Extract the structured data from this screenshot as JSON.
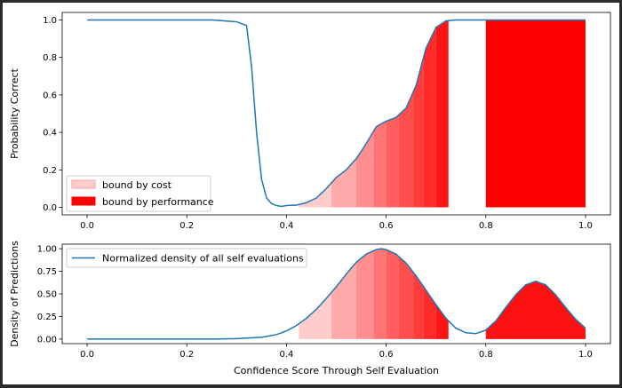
{
  "chart_data": [
    {
      "type": "line",
      "title": "",
      "xlabel": "",
      "ylabel": "Probability Correct",
      "xlim": [
        -0.05,
        1.05
      ],
      "ylim": [
        -0.04,
        1.04
      ],
      "xticks": [
        "0.0",
        "0.2",
        "0.4",
        "0.6",
        "0.8",
        "1.0"
      ],
      "yticks": [
        "0.0",
        "0.2",
        "0.4",
        "0.6",
        "0.8",
        "1.0"
      ],
      "series": [
        {
          "name": "probability correct",
          "color": "#1f77b4",
          "x": [
            0.0,
            0.05,
            0.1,
            0.15,
            0.2,
            0.25,
            0.3,
            0.32,
            0.33,
            0.34,
            0.35,
            0.36,
            0.37,
            0.38,
            0.39,
            0.4,
            0.42,
            0.44,
            0.46,
            0.48,
            0.5,
            0.52,
            0.54,
            0.56,
            0.58,
            0.6,
            0.62,
            0.64,
            0.66,
            0.68,
            0.7,
            0.72,
            0.74,
            0.76,
            0.8,
            0.85,
            0.9,
            0.95,
            1.0
          ],
          "y": [
            1.0,
            1.0,
            1.0,
            1.0,
            1.0,
            1.0,
            0.99,
            0.97,
            0.75,
            0.4,
            0.15,
            0.05,
            0.02,
            0.01,
            0.005,
            0.01,
            0.012,
            0.025,
            0.05,
            0.1,
            0.16,
            0.2,
            0.26,
            0.34,
            0.43,
            0.46,
            0.48,
            0.53,
            0.65,
            0.85,
            0.96,
            0.995,
            1.0,
            1.0,
            1.0,
            1.0,
            1.0,
            1.0,
            1.0
          ]
        }
      ],
      "fill_regions": [
        {
          "x_start": 0.425,
          "x_end": 0.49,
          "color": "#ffcccc"
        },
        {
          "x_start": 0.49,
          "x_end": 0.54,
          "color": "#ffaaaa"
        },
        {
          "x_start": 0.54,
          "x_end": 0.575,
          "color": "#ff8f8f"
        },
        {
          "x_start": 0.575,
          "x_end": 0.6,
          "color": "#ff7474"
        },
        {
          "x_start": 0.6,
          "x_end": 0.625,
          "color": "#ff5f5f"
        },
        {
          "x_start": 0.625,
          "x_end": 0.655,
          "color": "#ff4e4e"
        },
        {
          "x_start": 0.655,
          "x_end": 0.675,
          "color": "#ff3c3c"
        },
        {
          "x_start": 0.675,
          "x_end": 0.7,
          "color": "#ff2a2a"
        },
        {
          "x_start": 0.7,
          "x_end": 0.725,
          "color": "#ff1414"
        },
        {
          "x_start": 0.8,
          "x_end": 1.0,
          "color": "#ff0000"
        }
      ],
      "legend": {
        "position": "lower-left",
        "entries": [
          {
            "label": "bound by cost",
            "color": "#ffcccc",
            "edge": "#f4a6a6"
          },
          {
            "label": "bound by performance",
            "color": "#ff0000",
            "edge": "#ff0000"
          }
        ]
      }
    },
    {
      "type": "line",
      "title": "",
      "xlabel": "Confidence Score Through Self Evaluation",
      "ylabel": "Density of Predictions",
      "xlim": [
        -0.05,
        1.05
      ],
      "ylim": [
        -0.05,
        1.05
      ],
      "xticks": [
        "0.0",
        "0.2",
        "0.4",
        "0.6",
        "0.8",
        "1.0"
      ],
      "yticks": [
        "0.00",
        "0.25",
        "0.50",
        "0.75",
        "1.00"
      ],
      "series": [
        {
          "name": "Normalized density of all self evaluations",
          "color": "#1f77b4",
          "x": [
            0.0,
            0.05,
            0.1,
            0.15,
            0.2,
            0.25,
            0.3,
            0.35,
            0.38,
            0.4,
            0.42,
            0.44,
            0.46,
            0.48,
            0.5,
            0.52,
            0.54,
            0.56,
            0.58,
            0.59,
            0.6,
            0.62,
            0.64,
            0.66,
            0.68,
            0.7,
            0.72,
            0.74,
            0.76,
            0.78,
            0.8,
            0.82,
            0.84,
            0.86,
            0.88,
            0.9,
            0.92,
            0.94,
            0.96,
            0.98,
            1.0
          ],
          "y": [
            0.0,
            0.0,
            0.0,
            0.0,
            0.0,
            0.0,
            0.005,
            0.02,
            0.05,
            0.09,
            0.15,
            0.23,
            0.33,
            0.45,
            0.58,
            0.72,
            0.85,
            0.94,
            0.99,
            1.0,
            0.99,
            0.94,
            0.84,
            0.7,
            0.54,
            0.38,
            0.23,
            0.12,
            0.07,
            0.06,
            0.1,
            0.2,
            0.35,
            0.49,
            0.6,
            0.64,
            0.6,
            0.49,
            0.35,
            0.22,
            0.12
          ]
        }
      ],
      "fill_regions": [
        {
          "x_start": 0.425,
          "x_end": 0.49,
          "color": "#ffcccc"
        },
        {
          "x_start": 0.49,
          "x_end": 0.54,
          "color": "#ffaaaa"
        },
        {
          "x_start": 0.54,
          "x_end": 0.575,
          "color": "#ff8f8f"
        },
        {
          "x_start": 0.575,
          "x_end": 0.6,
          "color": "#ff7474"
        },
        {
          "x_start": 0.6,
          "x_end": 0.625,
          "color": "#ff5f5f"
        },
        {
          "x_start": 0.625,
          "x_end": 0.655,
          "color": "#ff4e4e"
        },
        {
          "x_start": 0.655,
          "x_end": 0.675,
          "color": "#ff3c3c"
        },
        {
          "x_start": 0.675,
          "x_end": 0.7,
          "color": "#ff2a2a"
        },
        {
          "x_start": 0.7,
          "x_end": 0.725,
          "color": "#ff1414"
        },
        {
          "x_start": 0.8,
          "x_end": 1.0,
          "color": "#ff1010"
        }
      ],
      "legend": {
        "position": "top-left",
        "entries": [
          {
            "label": "Normalized density of all self evaluations",
            "color": "#1f77b4"
          }
        ]
      }
    }
  ]
}
